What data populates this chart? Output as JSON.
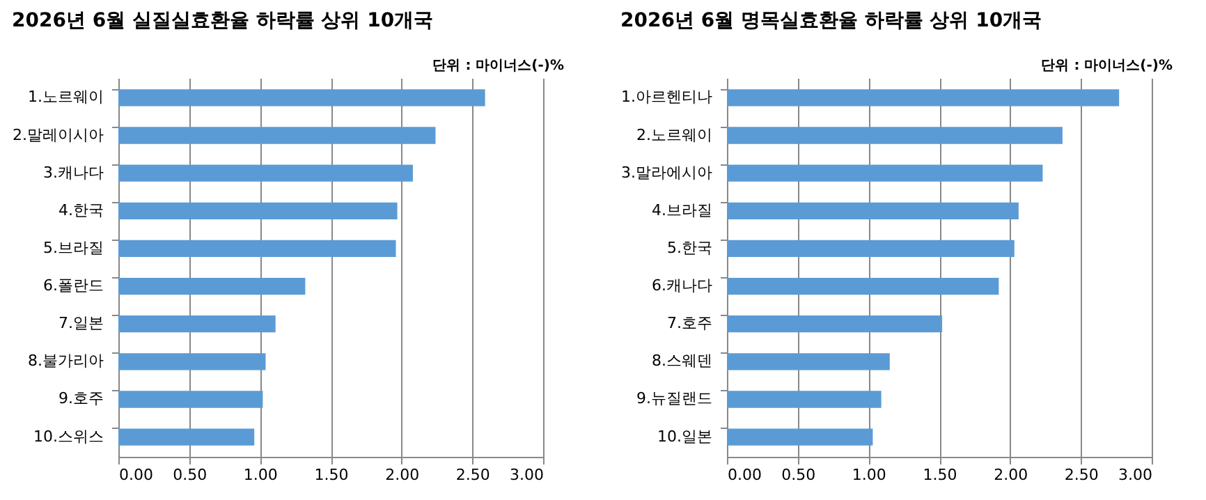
{
  "chart_data": [
    {
      "type": "bar",
      "orientation": "horizontal",
      "title": "2026년 6월 실질실효환율 하락률 상위 10개국",
      "subtitle": "단위 : 마이너스(-)%",
      "categories": [
        "1.노르웨이",
        "2.말레이시아",
        "3.캐나다",
        "4.한국",
        "5.브라질",
        "6.폴란드",
        "7.일본",
        "8.불가리아",
        "9.호주",
        "10.스위스"
      ],
      "values": [
        2.59,
        2.24,
        2.08,
        1.97,
        1.96,
        1.32,
        1.11,
        1.04,
        1.02,
        0.96
      ],
      "color": "#5b9bd5",
      "xlim": [
        0,
        3
      ],
      "xticks": [
        {
          "value": 0,
          "label": "0.00"
        },
        {
          "value": 0.5,
          "label": "0.50"
        },
        {
          "value": 1,
          "label": "1.00"
        },
        {
          "value": 1.5,
          "label": "1.50"
        },
        {
          "value": 2,
          "label": "2.00"
        },
        {
          "value": 2.5,
          "label": "2.50"
        },
        {
          "value": 3,
          "label": "3.00"
        }
      ],
      "grid": "x"
    },
    {
      "type": "bar",
      "orientation": "horizontal",
      "title": "2026년 6월 명목실효환율 하락률 상위 10개국",
      "subtitle": "단위 : 마이너스(-)%",
      "categories": [
        "1.아르헨티나",
        "2.노르웨이",
        "3.말라에시아",
        "4.브라질",
        "5.한국",
        "6.캐나다",
        "7.호주",
        "8.스웨덴",
        "9.뉴질랜드",
        "10.일본"
      ],
      "values": [
        2.77,
        2.37,
        2.23,
        2.06,
        2.03,
        1.92,
        1.52,
        1.15,
        1.09,
        1.03
      ],
      "color": "#5b9bd5",
      "xlim": [
        0,
        3
      ],
      "xticks": [
        {
          "value": 0,
          "label": "0.00"
        },
        {
          "value": 0.5,
          "label": "0.50"
        },
        {
          "value": 1,
          "label": "1.00"
        },
        {
          "value": 1.5,
          "label": "1.50"
        },
        {
          "value": 2,
          "label": "2.00"
        },
        {
          "value": 2.5,
          "label": "2.50"
        },
        {
          "value": 3,
          "label": "3.00"
        }
      ],
      "grid": "x"
    }
  ]
}
